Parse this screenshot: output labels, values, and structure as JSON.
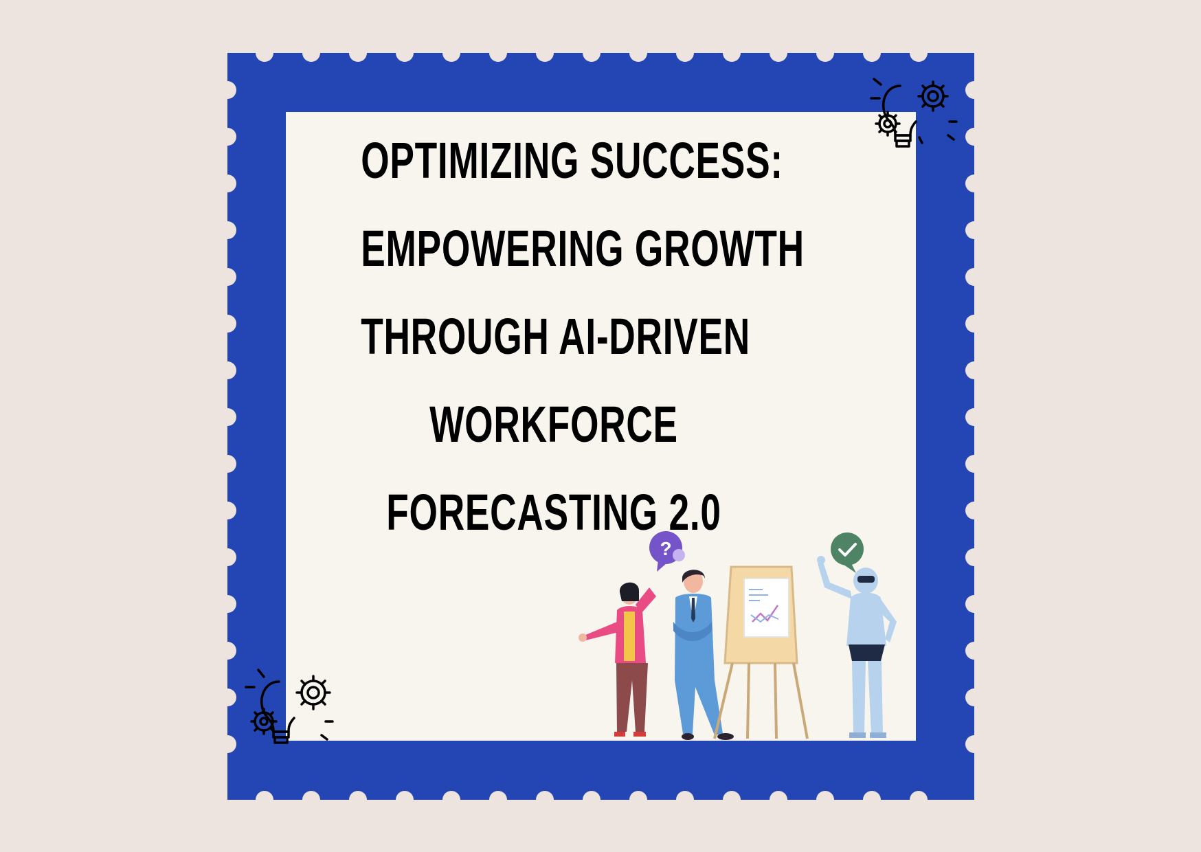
{
  "title": {
    "lines": [
      "OPTIMIZING SUCCESS:",
      "EMPOWERING GROWTH",
      "THROUGH AI-DRIVEN",
      "WORKFORCE",
      "FORECASTING 2.0"
    ]
  },
  "colors": {
    "background": "#ede4df",
    "stamp_border": "#2446b4",
    "stamp_inner": "#f8f5ef",
    "text": "#000000"
  },
  "icons": [
    "lightbulb-gears-icon",
    "question-bubble-icon",
    "checkmark-bubble-icon"
  ]
}
